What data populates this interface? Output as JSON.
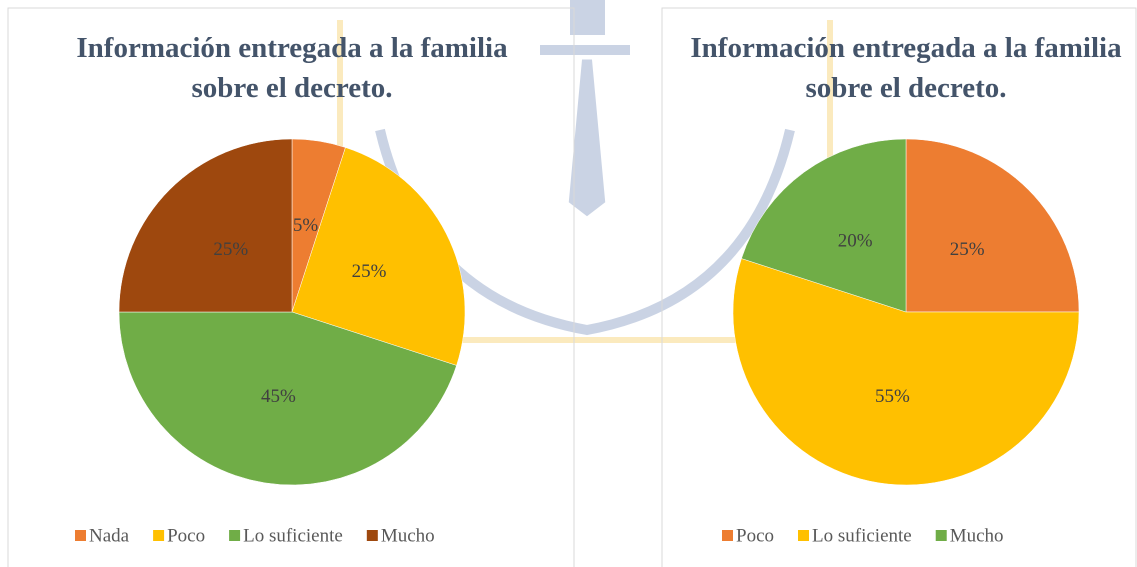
{
  "chart_data": [
    {
      "type": "pie",
      "title": "Información entregada a la familia sobre el decreto.",
      "categories": [
        "Nada",
        "Poco",
        "Lo suficiente",
        "Mucho"
      ],
      "values": [
        5,
        25,
        45,
        25
      ],
      "value_labels": [
        "5%",
        "25%",
        "45%",
        "25%"
      ],
      "colors": [
        "#ed7d31",
        "#ffc000",
        "#70ad47",
        "#9e480e"
      ],
      "legend": "bottom"
    },
    {
      "type": "pie",
      "title": "Información entregada a la familia sobre el decreto.",
      "categories": [
        "Poco",
        "Lo suficiente",
        "Mucho"
      ],
      "values": [
        25,
        55,
        20
      ],
      "value_labels": [
        "25%",
        "55%",
        "20%"
      ],
      "colors": [
        "#ed7d31",
        "#ffc000",
        "#70ad47"
      ],
      "legend": "bottom"
    }
  ]
}
